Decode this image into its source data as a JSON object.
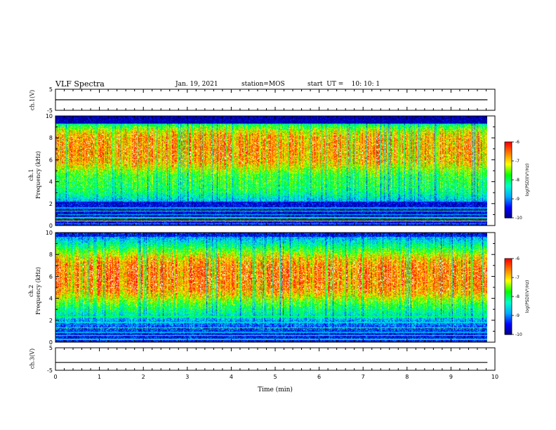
{
  "header": {
    "title": "VLF Spectra",
    "date": "Jan. 19, 2021",
    "station": "station=MOS",
    "start": "start  UT =    10: 10: 1"
  },
  "colors": {
    "palette": [
      "#000080",
      "#0000ff",
      "#00aaff",
      "#00ffcc",
      "#00ff00",
      "#ffff00",
      "#ff8000",
      "#ff0000",
      "#ffffff"
    ]
  },
  "chart_data": [
    {
      "type": "line",
      "panel": "ch.1(V)",
      "ylabel": "ch.1(V)",
      "ylim": [
        -5,
        5
      ],
      "yticks": [
        "5",
        "-5"
      ],
      "series": [
        {
          "x": [
            0,
            9.83
          ],
          "y": [
            0,
            0
          ]
        }
      ]
    },
    {
      "type": "heatmap",
      "panel": "ch.1 spectrogram",
      "ylabel": "ch.1\nFrequency (kHz)",
      "ylim": [
        0,
        10
      ],
      "yticks": [
        "0",
        "2",
        "4",
        "6",
        "8",
        "10"
      ],
      "colorbar": {
        "label": "log(PSD)(V²/Hz)",
        "range": [
          -10,
          -6
        ],
        "ticks": [
          "-6",
          "-7",
          "-8",
          "-9",
          "-10"
        ]
      },
      "approx_bands_kHz": {
        "strong_emission": [
          3,
          9
        ],
        "line_noise": [
          0,
          2.2
        ],
        "top_dark": [
          9.3,
          10
        ]
      }
    },
    {
      "type": "heatmap",
      "panel": "ch.2 spectrogram",
      "ylabel": "ch.2\nFrequency (kHz)",
      "ylim": [
        0,
        10
      ],
      "yticks": [
        "0",
        "2",
        "4",
        "6",
        "8",
        "10"
      ],
      "colorbar": {
        "label": "log(PSD)(V²/Hz)",
        "range": [
          -10,
          -6
        ],
        "ticks": [
          "-6",
          "-7",
          "-8",
          "-9",
          "-10"
        ]
      },
      "approx_bands_kHz": {
        "strong_emission": [
          4,
          8
        ],
        "line_noise": [
          0,
          2.5
        ],
        "top_dark": [
          9.6,
          10
        ]
      }
    },
    {
      "type": "line",
      "panel": "ch.3(V)",
      "ylabel": "ch.3(V)",
      "ylim": [
        -5,
        5
      ],
      "yticks": [
        "5",
        "-5"
      ],
      "series": [
        {
          "x": [
            0,
            9.83
          ],
          "y": [
            -1.5,
            -1.5
          ]
        }
      ]
    }
  ],
  "xaxis": {
    "label": "Time (min)",
    "ticks": [
      "0",
      "1",
      "2",
      "3",
      "4",
      "5",
      "6",
      "7",
      "8",
      "9",
      "10"
    ],
    "xlim": [
      0,
      10
    ],
    "data_end": 9.83
  }
}
